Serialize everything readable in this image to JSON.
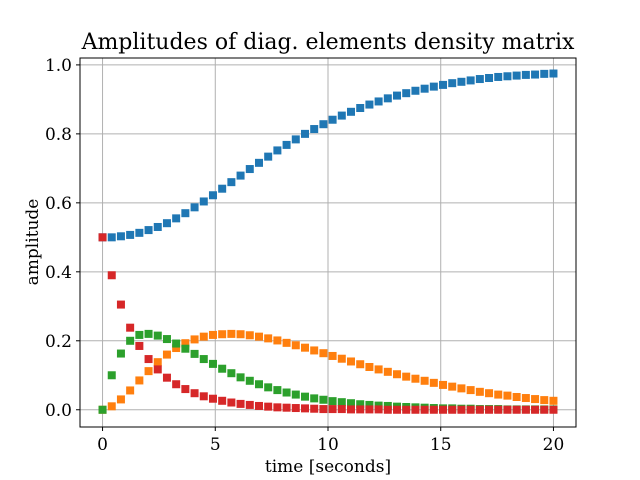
{
  "chart_data": {
    "type": "scatter",
    "title": "Amplitudes of diag. elements density matrix",
    "xlabel": "time [seconds]",
    "ylabel": "amplitude",
    "xlim": [
      -1,
      21
    ],
    "ylim": [
      -0.05,
      1.02
    ],
    "xticks": [
      0,
      5,
      10,
      15,
      20
    ],
    "yticks": [
      0.0,
      0.2,
      0.4,
      0.6,
      0.8,
      1.0
    ],
    "xtick_labels": [
      "0",
      "5",
      "10",
      "15",
      "20"
    ],
    "ytick_labels": [
      "0.0",
      "0.2",
      "0.4",
      "0.6",
      "0.8",
      "1.0"
    ],
    "grid": true,
    "x": [
      0.0,
      0.408,
      0.816,
      1.224,
      1.633,
      2.041,
      2.449,
      2.857,
      3.265,
      3.673,
      4.082,
      4.49,
      4.898,
      5.306,
      5.714,
      6.122,
      6.531,
      6.939,
      7.347,
      7.755,
      8.163,
      8.571,
      8.98,
      9.388,
      9.796,
      10.204,
      10.612,
      11.02,
      11.429,
      11.837,
      12.245,
      12.653,
      13.061,
      13.469,
      13.878,
      14.286,
      14.694,
      15.102,
      15.51,
      15.918,
      16.327,
      16.735,
      17.143,
      17.551,
      17.959,
      18.367,
      18.776,
      19.184,
      19.592,
      20.0
    ],
    "series": [
      {
        "color": "#1f77b4",
        "values": [
          0.5,
          0.5,
          0.503,
          0.507,
          0.513,
          0.521,
          0.53,
          0.541,
          0.555,
          0.57,
          0.587,
          0.604,
          0.622,
          0.641,
          0.66,
          0.679,
          0.698,
          0.716,
          0.734,
          0.752,
          0.768,
          0.784,
          0.8,
          0.814,
          0.828,
          0.841,
          0.853,
          0.864,
          0.875,
          0.885,
          0.894,
          0.903,
          0.911,
          0.918,
          0.925,
          0.931,
          0.937,
          0.942,
          0.947,
          0.951,
          0.955,
          0.959,
          0.962,
          0.965,
          0.967,
          0.969,
          0.971,
          0.972,
          0.974,
          0.975
        ]
      },
      {
        "color": "#ff7f0e",
        "values": [
          0.0,
          0.01,
          0.03,
          0.056,
          0.085,
          0.112,
          0.138,
          0.16,
          0.179,
          0.193,
          0.204,
          0.212,
          0.217,
          0.219,
          0.22,
          0.219,
          0.216,
          0.212,
          0.207,
          0.201,
          0.194,
          0.187,
          0.18,
          0.172,
          0.164,
          0.156,
          0.148,
          0.14,
          0.132,
          0.124,
          0.117,
          0.11,
          0.103,
          0.096,
          0.09,
          0.084,
          0.078,
          0.072,
          0.067,
          0.062,
          0.057,
          0.052,
          0.048,
          0.044,
          0.041,
          0.037,
          0.034,
          0.031,
          0.028,
          0.026
        ]
      },
      {
        "color": "#2ca02c",
        "values": [
          0.0,
          0.1,
          0.163,
          0.2,
          0.217,
          0.22,
          0.215,
          0.205,
          0.192,
          0.177,
          0.162,
          0.147,
          0.133,
          0.119,
          0.106,
          0.094,
          0.084,
          0.074,
          0.065,
          0.057,
          0.05,
          0.044,
          0.038,
          0.033,
          0.029,
          0.025,
          0.022,
          0.019,
          0.016,
          0.014,
          0.012,
          0.011,
          0.009,
          0.008,
          0.007,
          0.006,
          0.005,
          0.004,
          0.004,
          0.003,
          0.003,
          0.002,
          0.002,
          0.002,
          0.001,
          0.001,
          0.001,
          0.001,
          0.001,
          0.001
        ]
      },
      {
        "color": "#d62728",
        "values": [
          0.5,
          0.39,
          0.305,
          0.238,
          0.185,
          0.147,
          0.117,
          0.093,
          0.074,
          0.06,
          0.048,
          0.039,
          0.032,
          0.026,
          0.021,
          0.017,
          0.014,
          0.011,
          0.009,
          0.007,
          0.006,
          0.005,
          0.004,
          0.003,
          0.002,
          0.002,
          0.002,
          0.001,
          0.001,
          0.001,
          0.001,
          0.0,
          0.0,
          0.0,
          0.0,
          0.0,
          0.0,
          0.0,
          0.0,
          0.0,
          0.0,
          0.0,
          0.0,
          0.0,
          0.0,
          0.0,
          0.0,
          0.0,
          0.0,
          0.0
        ]
      }
    ]
  }
}
